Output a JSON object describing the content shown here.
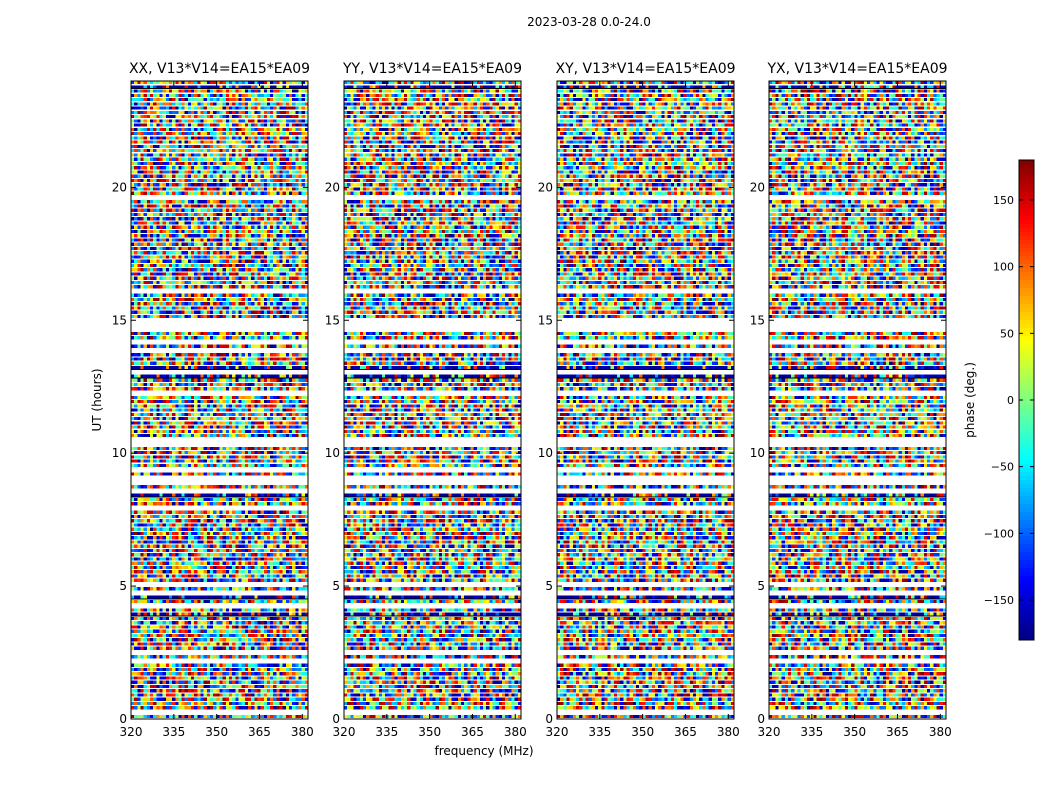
{
  "figure": {
    "suptitle": "2023-03-28 0.0-24.0"
  },
  "chart_data": {
    "type": "heatmap",
    "xlabel": "frequency (MHz)",
    "ylabel": "UT (hours)",
    "xlim": [
      320,
      382
    ],
    "ylim": [
      0,
      24
    ],
    "xticks": [
      320,
      335,
      350,
      365,
      380
    ],
    "yticks": [
      0,
      5,
      10,
      15,
      20
    ],
    "panels": [
      {
        "title": "XX, V13*V14=EA15*EA09"
      },
      {
        "title": "YY, V13*V14=EA15*EA09"
      },
      {
        "title": "XY, V13*V14=EA15*EA09"
      },
      {
        "title": "YX, V13*V14=EA15*EA09"
      }
    ],
    "colorbar": {
      "label": "phase (deg.)",
      "range": [
        -180,
        180
      ],
      "ticks": [
        150,
        100,
        50,
        0,
        -50,
        -100,
        -150
      ],
      "tick_labels": [
        "150",
        "100",
        "50",
        "0",
        "−50",
        "−100",
        "−150"
      ],
      "colormap": "jet"
    },
    "grid": false
  }
}
